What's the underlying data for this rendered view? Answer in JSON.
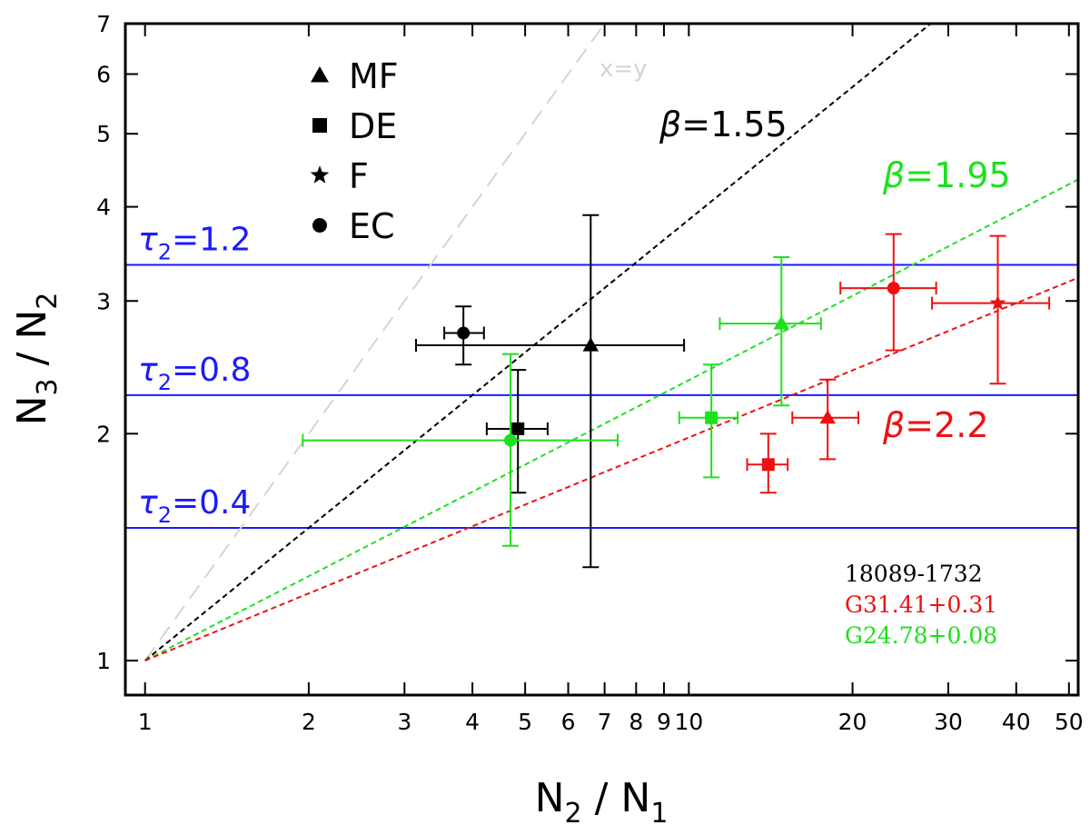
{
  "chart_data": {
    "type": "scatter",
    "xscale": "log",
    "yscale": "log",
    "xlim": [
      0.92,
      52
    ],
    "ylim": [
      0.9,
      7
    ],
    "xlabel": {
      "main": "N",
      "sub1": "2",
      "sep": " / ",
      "main2": "N",
      "sub2": "1"
    },
    "ylabel": {
      "main": "N",
      "sub1": "3",
      "sep": " / ",
      "main2": "N",
      "sub2": "2"
    },
    "xticks": [
      {
        "v": 1,
        "label": "1"
      },
      {
        "v": 2,
        "label": "2"
      },
      {
        "v": 3,
        "label": "3"
      },
      {
        "v": 4,
        "label": "4"
      },
      {
        "v": 5,
        "label": "5"
      },
      {
        "v": 6,
        "label": "6"
      },
      {
        "v": 7,
        "label": "7"
      },
      {
        "v": 8,
        "label": "8"
      },
      {
        "v": 9,
        "label": "9"
      },
      {
        "v": 10,
        "label": "10"
      },
      {
        "v": 20,
        "label": "20"
      },
      {
        "v": 30,
        "label": "30"
      },
      {
        "v": 40,
        "label": "40"
      },
      {
        "v": 50,
        "label": "50"
      }
    ],
    "yticks": [
      {
        "v": 1,
        "label": "1"
      },
      {
        "v": 2,
        "label": "2"
      },
      {
        "v": 3,
        "label": "3"
      },
      {
        "v": 4,
        "label": "4"
      },
      {
        "v": 5,
        "label": "5"
      },
      {
        "v": 6,
        "label": "6"
      },
      {
        "v": 7,
        "label": "7"
      }
    ],
    "hlines": [
      {
        "y": 3.35,
        "label": "τ",
        "sub": "2",
        "value": "=1.2",
        "color": "#1a1aff"
      },
      {
        "y": 2.25,
        "label": "τ",
        "sub": "2",
        "value": "=0.8",
        "color": "#1a1aff"
      },
      {
        "y": 1.5,
        "label": "τ",
        "sub": "2",
        "value": "=0.4",
        "color": "#1a1aff"
      }
    ],
    "power_lines": [
      {
        "name": "x=y",
        "slope": 1.0,
        "x_end": 6.9,
        "color": "#d4d4d4",
        "dash": "18,10",
        "label": "x=y"
      },
      {
        "name": "beta-1.55",
        "slope": 0.585,
        "x_end": 52,
        "color": "#000000",
        "dash": "6,4",
        "label": "β=1.55"
      },
      {
        "name": "beta-1.95",
        "slope": 0.372,
        "x_end": 52,
        "color": "#1fe01f",
        "dash": "6,4",
        "label": "β=1.95"
      },
      {
        "name": "beta-2.2",
        "slope": 0.296,
        "x_end": 52,
        "color": "#ee1111",
        "dash": "6,4",
        "label": "β=2.2"
      }
    ],
    "series": [
      {
        "name": "18089-1732",
        "color": "#000000",
        "points": [
          {
            "marker": "triangle",
            "x": 6.6,
            "y": 2.62,
            "xerr": [
              3.15,
              9.8
            ],
            "yerr": [
              1.33,
              3.9
            ]
          },
          {
            "marker": "square",
            "x": 4.85,
            "y": 2.03,
            "xerr": [
              4.25,
              5.5
            ],
            "yerr": [
              1.67,
              2.43
            ]
          },
          {
            "marker": "circle",
            "x": 3.85,
            "y": 2.72,
            "xerr": [
              3.55,
              4.2
            ],
            "yerr": [
              2.47,
              2.95
            ]
          }
        ]
      },
      {
        "name": "G31.41+0.31",
        "color": "#ee1111",
        "points": [
          {
            "marker": "triangle",
            "x": 18.0,
            "y": 2.1,
            "xerr": [
              15.5,
              20.5
            ],
            "yerr": [
              1.85,
              2.36
            ]
          },
          {
            "marker": "square",
            "x": 14.0,
            "y": 1.82,
            "xerr": [
              12.8,
              15.2
            ],
            "yerr": [
              1.67,
              2.0
            ]
          },
          {
            "marker": "star",
            "x": 37.0,
            "y": 2.98,
            "xerr": [
              28.0,
              46.0
            ],
            "yerr": [
              2.33,
              3.66
            ]
          },
          {
            "marker": "circle",
            "x": 23.8,
            "y": 3.12,
            "xerr": [
              19.0,
              28.5
            ],
            "yerr": [
              2.58,
              3.68
            ]
          }
        ]
      },
      {
        "name": "G24.78+0.08",
        "color": "#1fe01f",
        "points": [
          {
            "marker": "triangle",
            "x": 14.8,
            "y": 2.8,
            "xerr": [
              11.4,
              17.5
            ],
            "yerr": [
              2.18,
              3.43
            ]
          },
          {
            "marker": "square",
            "x": 11.0,
            "y": 2.1,
            "xerr": [
              9.6,
              12.3
            ],
            "yerr": [
              1.75,
              2.47
            ]
          },
          {
            "marker": "circle",
            "x": 4.7,
            "y": 1.96,
            "xerr": [
              1.95,
              7.4
            ],
            "yerr": [
              1.42,
              2.55
            ]
          }
        ]
      }
    ],
    "marker_legend": [
      {
        "marker": "triangle",
        "label": "MF"
      },
      {
        "marker": "square",
        "label": "DE"
      },
      {
        "marker": "star",
        "label": "F"
      },
      {
        "marker": "circle",
        "label": "EC"
      }
    ],
    "source_legend": [
      {
        "label": "18089-1732",
        "color": "#000000"
      },
      {
        "label": "G31.41+0.31",
        "color": "#ee1111"
      },
      {
        "label": "G24.78+0.08",
        "color": "#1fe01f"
      }
    ]
  }
}
